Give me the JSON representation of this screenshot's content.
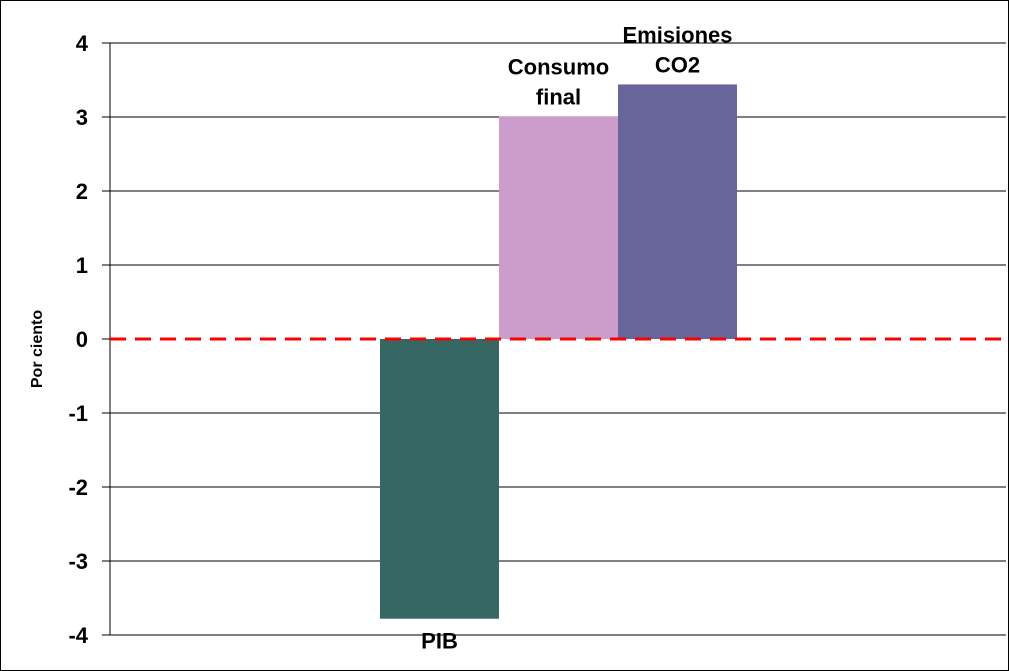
{
  "chart_data": {
    "type": "bar",
    "title": "",
    "xlabel": "",
    "ylabel": "Por ciento",
    "ylim": [
      -4,
      4
    ],
    "yticks": [
      "-4",
      "-3",
      "-2",
      "-1",
      "0",
      "1",
      "2",
      "3",
      "4"
    ],
    "grid": true,
    "legend": "none",
    "categories": [
      {
        "lines": [
          "PIB"
        ],
        "value": -3.78,
        "color": "#356763"
      },
      {
        "lines": [
          "Consumo",
          "final"
        ],
        "value": 3.01,
        "color": "#cc9ccb"
      },
      {
        "lines": [
          "Emisiones",
          "CO2"
        ],
        "value": 3.44,
        "color": "#676599"
      }
    ],
    "reference_line": {
      "value": 0,
      "color": "#ff0000",
      "style": "dashed"
    }
  }
}
